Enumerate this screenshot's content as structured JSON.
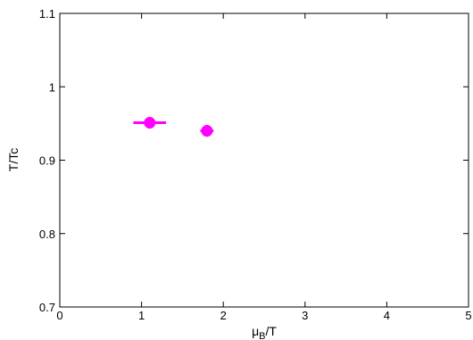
{
  "chart_data": {
    "type": "scatter",
    "title": "",
    "xlabel": {
      "main": "μ",
      "sub": "B",
      "tail": "/T"
    },
    "ylabel": "T/Tc",
    "xlim": [
      0,
      5
    ],
    "ylim": [
      0.7,
      1.1
    ],
    "x_ticks": [
      0,
      1,
      2,
      3,
      4,
      5
    ],
    "x_tick_labels": [
      "0",
      "1",
      "2",
      "3",
      "4",
      "5"
    ],
    "y_ticks": [
      0.7,
      0.8,
      0.9,
      1.0,
      1.1
    ],
    "y_tick_labels": [
      "0.7",
      "0.8",
      "0.9",
      "1",
      "1.1"
    ],
    "grid": false,
    "legend": "none",
    "series": [
      {
        "color": "#ff00ff",
        "points": [
          {
            "x": 1.1,
            "y": 0.951,
            "xerr": 0.2,
            "yerr": 0.008
          },
          {
            "x": 1.8,
            "y": 0.94,
            "xerr": 0.08,
            "yerr": 0.008
          }
        ]
      }
    ]
  }
}
